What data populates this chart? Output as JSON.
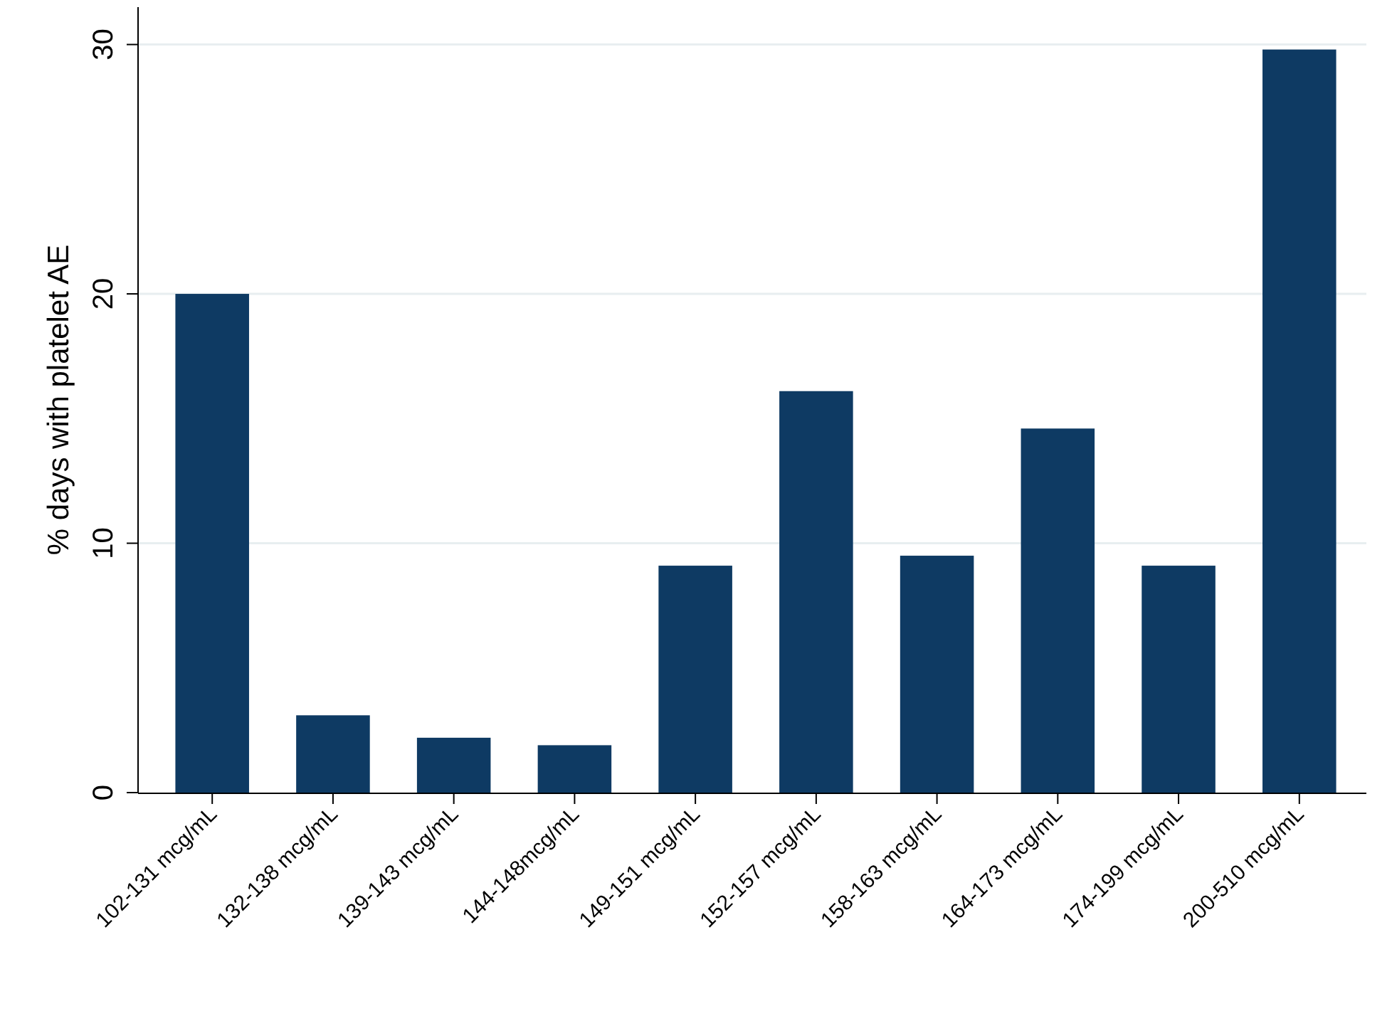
{
  "chart_data": {
    "type": "bar",
    "ylabel": "% days with platelet AE",
    "categories": [
      "102-131 mcg/mL",
      "132-138 mcg/mL",
      "139-143 mcg/mL",
      "144-148mcg/mL",
      "149-151 mcg/mL",
      "152-157 mcg/mL",
      "158-163 mcg/mL",
      "164-173 mcg/mL",
      "174-199 mcg/mL",
      "200-510 mcg/mL"
    ],
    "values": [
      20.0,
      3.1,
      2.2,
      1.9,
      9.1,
      16.1,
      9.5,
      14.6,
      9.1,
      29.8
    ],
    "color": "#0e3a63",
    "ylim": [
      0,
      31.5
    ],
    "yticks": [
      0,
      10,
      20,
      30
    ],
    "grid": "y"
  }
}
